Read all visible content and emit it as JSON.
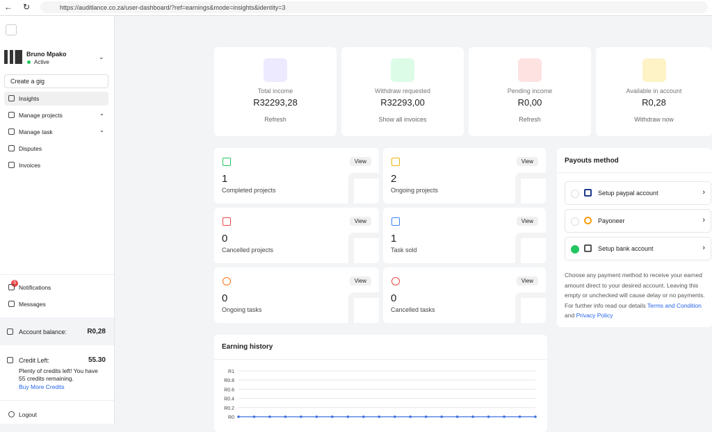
{
  "browser": {
    "url": "https://auditlance.co.za/user-dashboard/?ref=earnings&mode=insights&identity=3"
  },
  "sidebar": {
    "user": {
      "name": "Bruno Mpako",
      "status": "Active"
    },
    "create_gig": "Create a gig",
    "nav": [
      "Insights",
      "Manage projects",
      "Manage task",
      "Disputes",
      "Invoices"
    ],
    "notifications": {
      "badge": "3",
      "label": "Notifications"
    },
    "messages": "Messages",
    "account_balance": {
      "label": "Account balance:",
      "value": "R0,28"
    },
    "credit": {
      "label": "Credit Left:",
      "value": "55.30",
      "message": "Plenty of credits left! You have 55 credits remaining.",
      "link": "Buy More Credits"
    },
    "logout": "Logout"
  },
  "stats": [
    {
      "label": "Total income",
      "value": "R32293,28",
      "action": "Refresh"
    },
    {
      "label": "Withdraw requested",
      "value": "R32293,00",
      "action": "Show all invoices"
    },
    {
      "label": "Pending income",
      "value": "R0,00",
      "action": "Refresh"
    },
    {
      "label": "Available in account",
      "value": "R0,28",
      "action": "Withdraw now"
    }
  ],
  "tiles": [
    {
      "number": "1",
      "label": "Completed projects",
      "button": "View"
    },
    {
      "number": "2",
      "label": "Ongoing projects",
      "button": "View"
    },
    {
      "number": "0",
      "label": "Cancelled projects",
      "button": "View"
    },
    {
      "number": "1",
      "label": "Task sold",
      "button": "View"
    },
    {
      "number": "0",
      "label": "Ongoing tasks",
      "button": "View"
    },
    {
      "number": "0",
      "label": "Cancelled tasks",
      "button": "View"
    }
  ],
  "payouts": {
    "title": "Payouts method",
    "options": [
      "Setup paypal account",
      "Payoneer",
      "Setup bank account"
    ],
    "note": {
      "text": "Choose any payment method to receive your earned amount direct to your desired account. Leaving this empty or unchecked will cause delay or no payments. For further info read our details",
      "link1": "Terms and Condition",
      "joiner": "and",
      "link2": "Privacy Policy"
    }
  },
  "earning_history": {
    "title": "Earning history",
    "chart": {
      "type": "line",
      "color": "#3b6fe0",
      "ylim": [
        0,
        1
      ],
      "yticks": [
        {
          "value": 0,
          "label": "R0"
        },
        {
          "value": 0.2,
          "label": "R0.2"
        },
        {
          "value": 0.4,
          "label": "R0.4"
        },
        {
          "value": 0.6,
          "label": "R0.6"
        },
        {
          "value": 0.8,
          "label": "R0.8"
        },
        {
          "value": 1,
          "label": "R1"
        }
      ],
      "values": [
        0,
        0,
        0,
        0,
        0,
        0,
        0,
        0,
        0,
        0,
        0,
        0,
        0,
        0,
        0,
        0,
        0,
        0,
        0,
        0
      ]
    }
  }
}
